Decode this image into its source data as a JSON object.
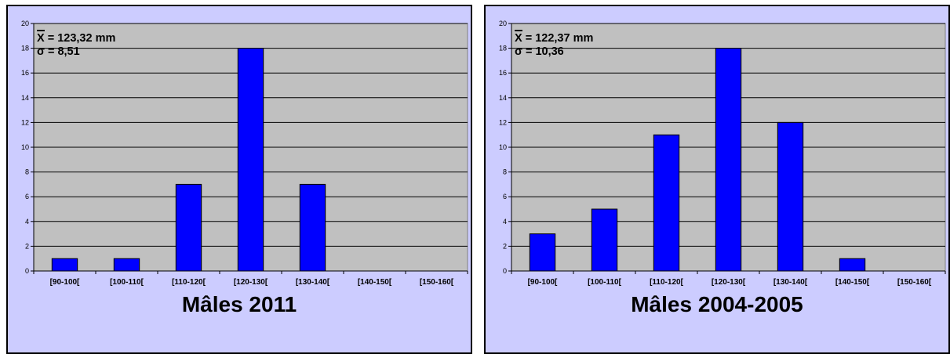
{
  "chart_data": [
    {
      "type": "bar",
      "title": "Mâles 2011",
      "categories": [
        "[90-100[",
        "[100-110[",
        "[110-120[",
        "[120-130[",
        "[130-140[",
        "[140-150[",
        "[150-160["
      ],
      "values": [
        1,
        1,
        7,
        18,
        7,
        0,
        0
      ],
      "ylim": [
        0,
        20
      ],
      "yticks": [
        "0",
        "2",
        "4",
        "6",
        "8",
        "10",
        "12",
        "14",
        "16",
        "18",
        "20"
      ],
      "grid": true,
      "annotations": {
        "mean": "X = 123,32 mm",
        "sigma": "σ = 8,51"
      },
      "colors": {
        "bar": "#0000ff",
        "plot_bg": "#c0c0c0",
        "panel_bg": "#ccccff"
      }
    },
    {
      "type": "bar",
      "title": "Mâles 2004-2005",
      "categories": [
        "[90-100[",
        "[100-110[",
        "[110-120[",
        "[120-130[",
        "[130-140[",
        "[140-150[",
        "[150-160["
      ],
      "values": [
        3,
        5,
        11,
        18,
        12,
        1,
        0
      ],
      "ylim": [
        0,
        20
      ],
      "yticks": [
        "0",
        "2",
        "4",
        "6",
        "8",
        "10",
        "12",
        "14",
        "16",
        "18",
        "20"
      ],
      "grid": true,
      "annotations": {
        "mean": "X = 122,37 mm",
        "sigma": "σ = 10,36"
      },
      "colors": {
        "bar": "#0000ff",
        "plot_bg": "#c0c0c0",
        "panel_bg": "#ccccff"
      }
    }
  ]
}
